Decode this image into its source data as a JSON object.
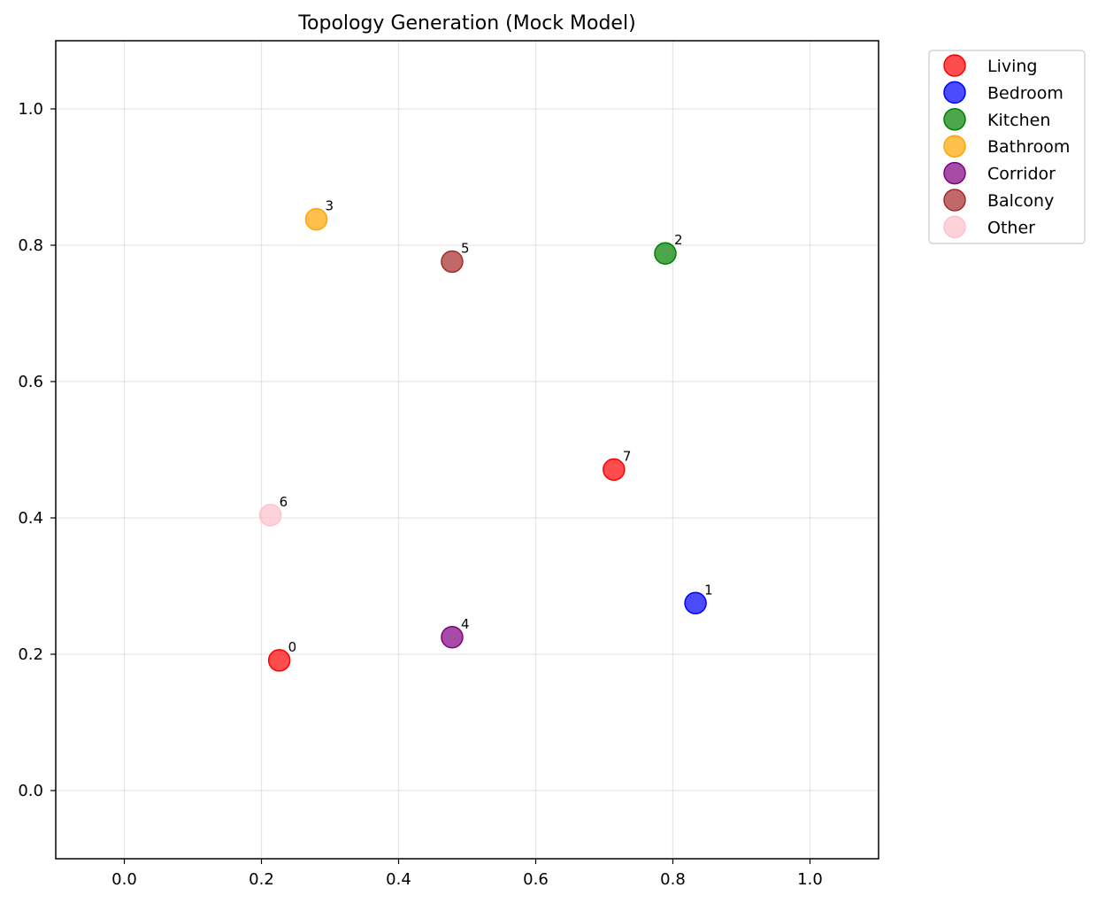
{
  "chart_data": {
    "type": "scatter",
    "title": "Topology Generation (Mock Model)",
    "xlabel": "",
    "ylabel": "",
    "xlim": [
      -0.1,
      1.1
    ],
    "ylim": [
      -0.1,
      1.1
    ],
    "x_ticks": [
      "0.0",
      "0.2",
      "0.4",
      "0.6",
      "0.8",
      "1.0"
    ],
    "y_ticks": [
      "0.0",
      "0.2",
      "0.4",
      "0.6",
      "0.8",
      "1.0"
    ],
    "grid": true,
    "legend_position": "outside-top-right",
    "categories": [
      {
        "name": "Living",
        "color": "#ff0000"
      },
      {
        "name": "Bedroom",
        "color": "#0000ff"
      },
      {
        "name": "Kitchen",
        "color": "#008000"
      },
      {
        "name": "Bathroom",
        "color": "#ffa500"
      },
      {
        "name": "Corridor",
        "color": "#800080"
      },
      {
        "name": "Balcony",
        "color": "#a52a2a"
      },
      {
        "name": "Other",
        "color": "#ffc0cb"
      }
    ],
    "points": [
      {
        "label": "0",
        "x": 0.226,
        "y": 0.191,
        "category": "Living"
      },
      {
        "label": "1",
        "x": 0.833,
        "y": 0.275,
        "category": "Bedroom"
      },
      {
        "label": "2",
        "x": 0.789,
        "y": 0.788,
        "category": "Kitchen"
      },
      {
        "label": "3",
        "x": 0.28,
        "y": 0.838,
        "category": "Bathroom"
      },
      {
        "label": "4",
        "x": 0.478,
        "y": 0.225,
        "category": "Corridor"
      },
      {
        "label": "5",
        "x": 0.478,
        "y": 0.776,
        "category": "Balcony"
      },
      {
        "label": "6",
        "x": 0.213,
        "y": 0.404,
        "category": "Other"
      },
      {
        "label": "7",
        "x": 0.714,
        "y": 0.471,
        "category": "Living"
      }
    ]
  }
}
